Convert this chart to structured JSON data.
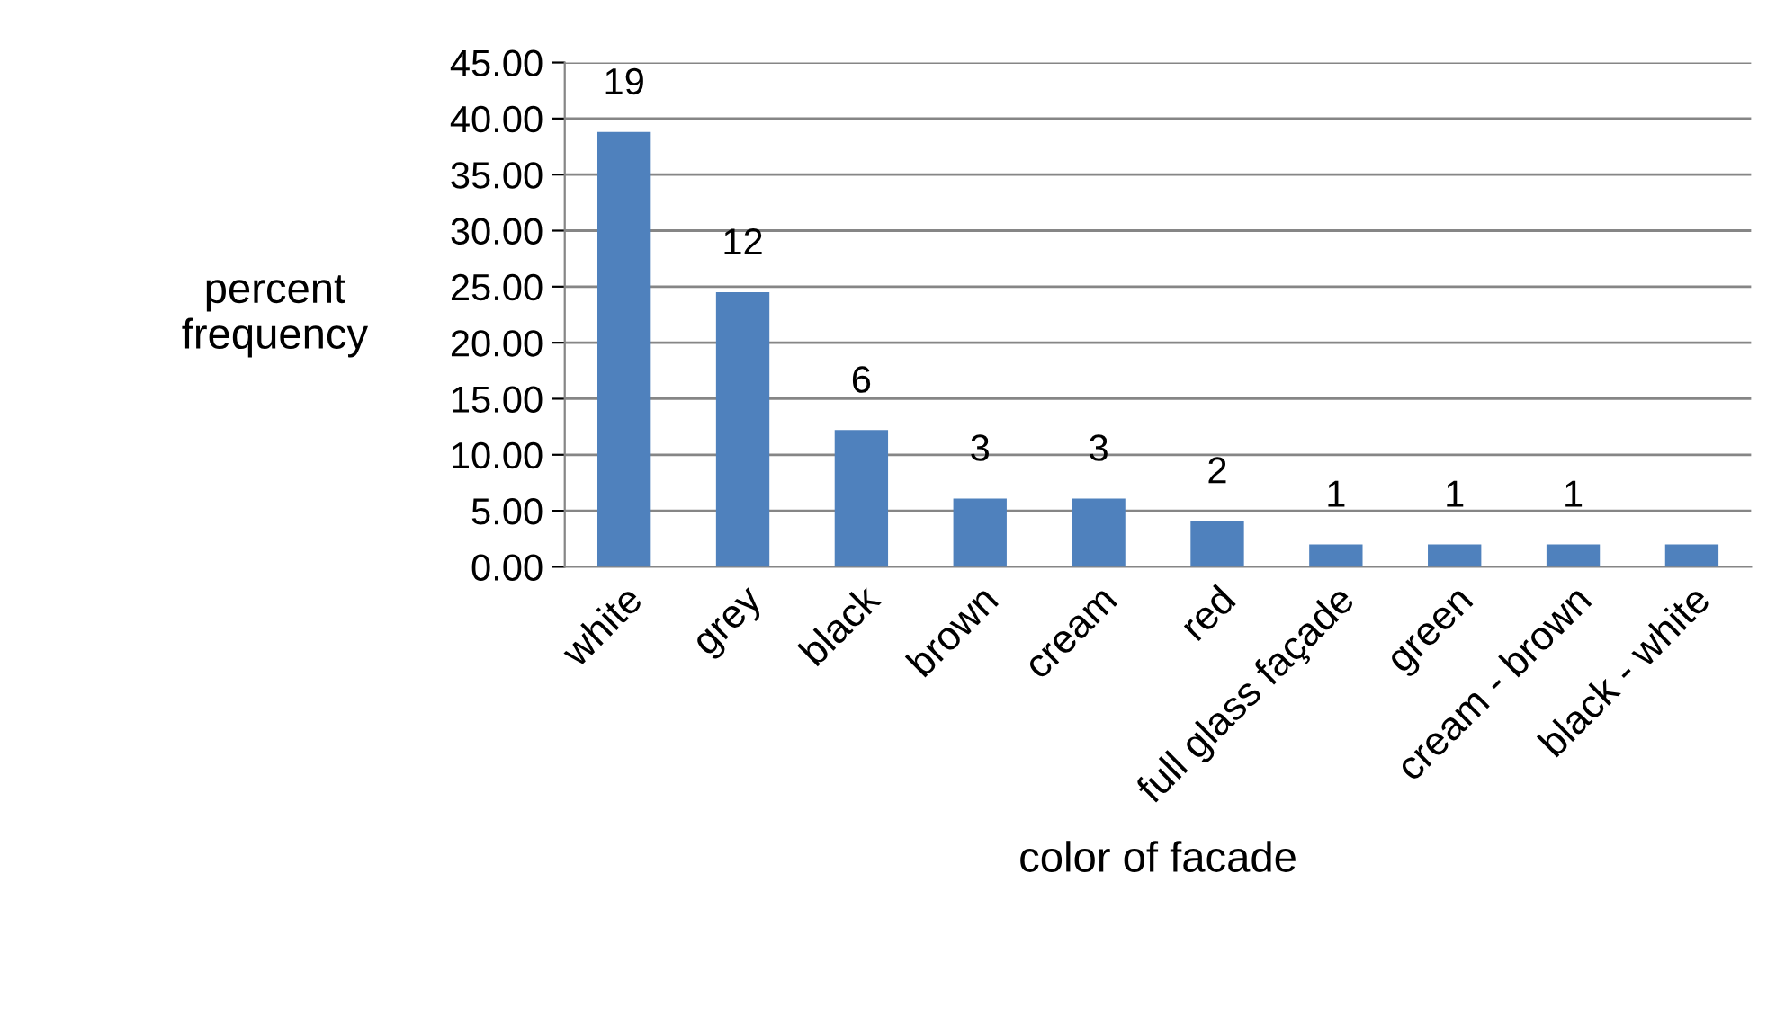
{
  "chart_data": {
    "type": "bar",
    "xlabel": "color of facade",
    "ylabel": "percent\nfrequency",
    "categories": [
      "white",
      "grey",
      "black",
      "brown",
      "cream",
      "red",
      "full glass façade",
      "green",
      "cream - brown",
      "black - white"
    ],
    "values": [
      38.8,
      24.5,
      12.2,
      6.1,
      6.1,
      4.1,
      2.0,
      2.0,
      2.0,
      2.0
    ],
    "annotations": [
      {
        "text": "19",
        "x": "white",
        "y": 38.8
      },
      {
        "text": "12",
        "x": "grey",
        "y": 24.5
      },
      {
        "text": "6",
        "x": "black",
        "y": 12.2
      },
      {
        "text": "3",
        "x": "brown",
        "y": 6.1
      },
      {
        "text": "3",
        "x": "cream",
        "y": 6.1
      },
      {
        "text": "2",
        "x": "red",
        "y": 4.1
      },
      {
        "text": "1",
        "x": "full glass façade",
        "y": 2.0
      },
      {
        "text": "1",
        "x": "green",
        "y": 2.0
      },
      {
        "text": "1",
        "x": "cream - brown",
        "y": 2.0
      }
    ],
    "color": "#4f81bd",
    "ylim": [
      0,
      45
    ],
    "yticks": [
      {
        "value": 0,
        "label": "0.00"
      },
      {
        "value": 5,
        "label": "5.00"
      },
      {
        "value": 10,
        "label": "10.00"
      },
      {
        "value": 15,
        "label": "15.00"
      },
      {
        "value": 20,
        "label": "20.00"
      },
      {
        "value": 25,
        "label": "25.00"
      },
      {
        "value": 30,
        "label": "30.00"
      },
      {
        "value": 35,
        "label": "35.00"
      },
      {
        "value": 40,
        "label": "40.00"
      },
      {
        "value": 45,
        "label": "45.00"
      }
    ],
    "grid": "y"
  }
}
